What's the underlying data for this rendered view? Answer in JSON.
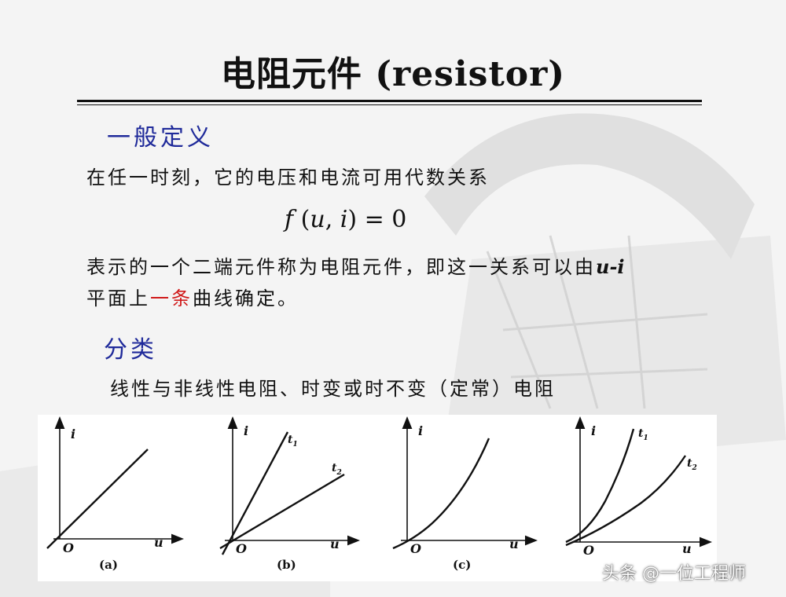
{
  "slide": {
    "title": "电阻元件 (resistor)",
    "section1": {
      "heading": "一般定义",
      "line1": "在任一时刻，它的电压和电流可用代数关系"
    },
    "formula": {
      "f": "f",
      "open": " (",
      "u": "u",
      "comma": ", ",
      "i": "i",
      "close": ") = 0"
    },
    "definition": {
      "line2_part1": "表示的一个二端元件称为电阻元件，即这一关系可以由",
      "line2_emph": "u-i",
      "line3_part1": "平面上",
      "line3_red": "一条",
      "line3_part2": "曲线确定。"
    },
    "section2": {
      "heading": "分类",
      "line": "线性与非线性电阻、时变或时不变（定常）电阻"
    }
  },
  "graphs": [
    {
      "caption": "(a)",
      "y_label": "i",
      "x_label": "u",
      "origin": "O",
      "curves": [
        {
          "type": "linear"
        }
      ]
    },
    {
      "caption": "(b)",
      "y_label": "i",
      "x_label": "u",
      "origin": "O",
      "curves": [
        {
          "type": "linear",
          "label": "t",
          "sub": "1"
        },
        {
          "type": "linear",
          "label": "t",
          "sub": "2"
        }
      ]
    },
    {
      "caption": "(c)",
      "y_label": "i",
      "x_label": "u",
      "origin": "O",
      "curves": [
        {
          "type": "nonlinear"
        }
      ]
    },
    {
      "caption": "",
      "y_label": "i",
      "x_label": "u",
      "origin": "O",
      "curves": [
        {
          "type": "nonlinear",
          "label": "t",
          "sub": "1"
        },
        {
          "type": "nonlinear",
          "label": "t",
          "sub": "2"
        }
      ]
    }
  ],
  "watermark": "头条 @一位工程师",
  "colors": {
    "heading": "#1f2a9a",
    "emphasis": "#d01a1a",
    "text": "#111111"
  }
}
